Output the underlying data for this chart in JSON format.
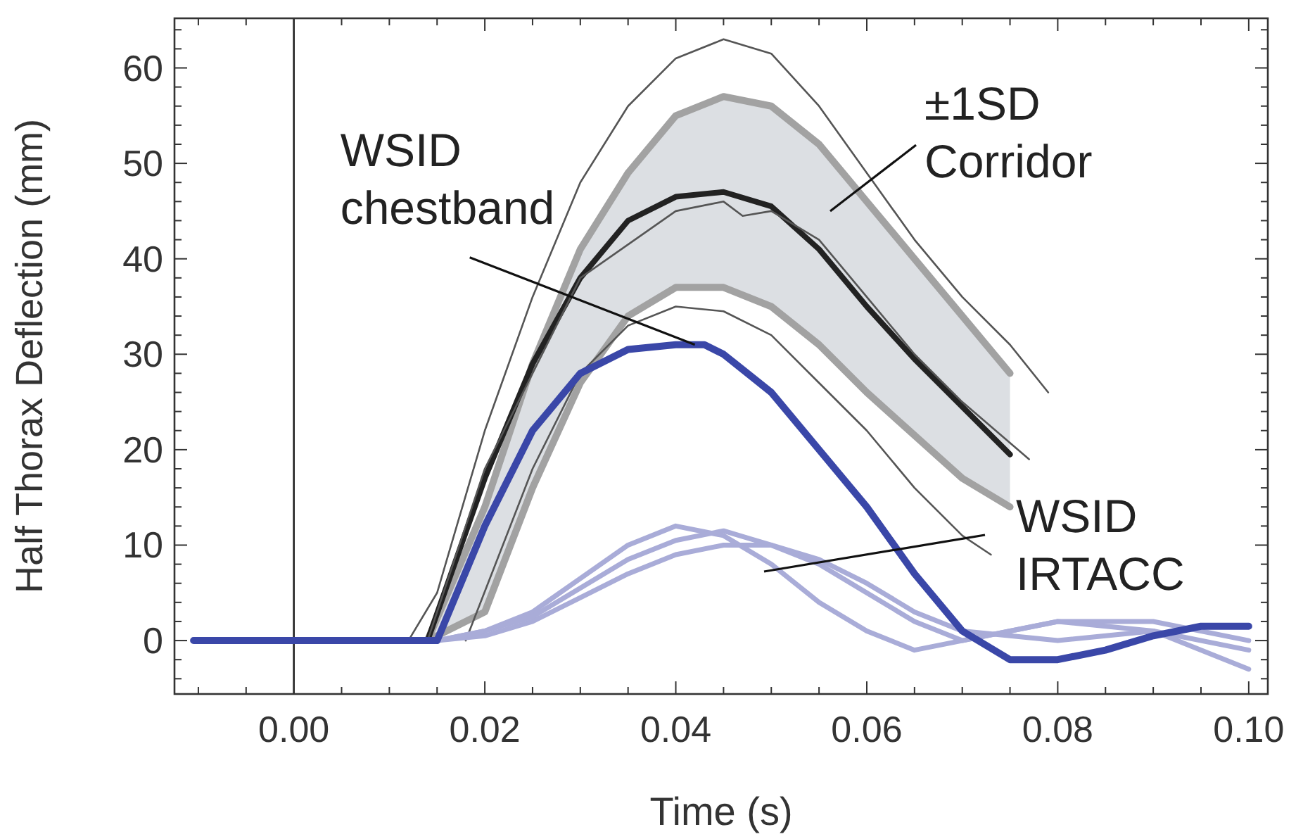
{
  "chart_data": {
    "type": "line",
    "xlabel": "Time (s)",
    "ylabel": "Half Thorax Deflection (mm)",
    "xlim": [
      -0.0125,
      0.102
    ],
    "ylim": [
      -5.6,
      65.2
    ],
    "xticks": [
      {
        "value": -0.01,
        "label": null
      },
      {
        "value": -0.005,
        "label": null
      },
      {
        "value": 0,
        "label": "0.00"
      },
      {
        "value": 0.005,
        "label": null
      },
      {
        "value": 0.01,
        "label": null
      },
      {
        "value": 0.015,
        "label": null
      },
      {
        "value": 0.02,
        "label": "0.02"
      },
      {
        "value": 0.025,
        "label": null
      },
      {
        "value": 0.03,
        "label": null
      },
      {
        "value": 0.035,
        "label": null
      },
      {
        "value": 0.04,
        "label": "0.04"
      },
      {
        "value": 0.045,
        "label": null
      },
      {
        "value": 0.05,
        "label": null
      },
      {
        "value": 0.055,
        "label": null
      },
      {
        "value": 0.06,
        "label": "0.06"
      },
      {
        "value": 0.065,
        "label": null
      },
      {
        "value": 0.07,
        "label": null
      },
      {
        "value": 0.075,
        "label": null
      },
      {
        "value": 0.08,
        "label": "0.08"
      },
      {
        "value": 0.085,
        "label": null
      },
      {
        "value": 0.09,
        "label": null
      },
      {
        "value": 0.095,
        "label": null
      },
      {
        "value": 0.1,
        "label": "0.10"
      }
    ],
    "yticks": [
      {
        "value": -4,
        "label": null
      },
      {
        "value": -2,
        "label": null
      },
      0,
      {
        "value": 2,
        "label": null
      },
      {
        "value": 4,
        "label": null
      },
      {
        "value": 6,
        "label": null
      },
      {
        "value": 8,
        "label": null
      },
      10,
      {
        "value": 12,
        "label": null
      },
      {
        "value": 14,
        "label": null
      },
      {
        "value": 16,
        "label": null
      },
      {
        "value": 18,
        "label": null
      },
      20,
      {
        "value": 22,
        "label": null
      },
      {
        "value": 24,
        "label": null
      },
      {
        "value": 26,
        "label": null
      },
      {
        "value": 28,
        "label": null
      },
      30,
      {
        "value": 32,
        "label": null
      },
      {
        "value": 34,
        "label": null
      },
      {
        "value": 36,
        "label": null
      },
      {
        "value": 38,
        "label": null
      },
      40,
      {
        "value": 42,
        "label": null
      },
      {
        "value": 44,
        "label": null
      },
      {
        "value": 46,
        "label": null
      },
      {
        "value": 48,
        "label": null
      },
      50,
      {
        "value": 52,
        "label": null
      },
      {
        "value": 54,
        "label": null
      },
      {
        "value": 56,
        "label": null
      },
      {
        "value": 58,
        "label": null
      },
      60,
      {
        "value": 62,
        "label": null
      },
      {
        "value": 64,
        "label": null
      }
    ],
    "grid": false,
    "ref_lines": [
      {
        "axis": "x",
        "value": 0,
        "color": "#222222"
      }
    ],
    "series": [
      {
        "color": "#a2a2a2",
        "x": [
          0.014,
          0.02,
          0.025,
          0.03,
          0.035,
          0.04,
          0.045,
          0.05,
          0.055,
          0.06,
          0.065,
          0.07,
          0.075
        ],
        "values": [
          0,
          14,
          29,
          41,
          49,
          55,
          57,
          56,
          52,
          46,
          40,
          34,
          28
        ]
      },
      {
        "color": "#a2a2a2",
        "x": [
          0.014,
          0.02,
          0.025,
          0.03,
          0.035,
          0.04,
          0.045,
          0.05,
          0.055,
          0.06,
          0.065,
          0.07,
          0.075
        ],
        "values": [
          0,
          3,
          16,
          27,
          34,
          37,
          37,
          35,
          31,
          26,
          21.5,
          17,
          14
        ]
      },
      {
        "color": "#222222",
        "x": [
          0.014,
          0.02,
          0.025,
          0.03,
          0.035,
          0.04,
          0.045,
          0.05,
          0.055,
          0.06,
          0.065,
          0.07,
          0.075
        ],
        "values": [
          0,
          17,
          29,
          38,
          44,
          46.5,
          47,
          45.5,
          41,
          35,
          29.5,
          24.5,
          19.5
        ],
        "lower": [
          0,
          3,
          16,
          27,
          34,
          37,
          37,
          35,
          31,
          26,
          21.5,
          17,
          14
        ],
        "upper": [
          0,
          14,
          29,
          41,
          49,
          55,
          57,
          56,
          52,
          46,
          40,
          34,
          28
        ]
      },
      {
        "color": "#555555",
        "x": [
          0.012,
          0.015,
          0.02,
          0.025,
          0.03,
          0.035,
          0.04,
          0.045,
          0.05,
          0.055,
          0.06,
          0.065,
          0.07,
          0.075,
          0.079
        ],
        "values": [
          0,
          5,
          22,
          36,
          48,
          56,
          61,
          63,
          61.5,
          56,
          49,
          42,
          36,
          31,
          26
        ]
      },
      {
        "color": "#555555",
        "x": [
          0.018,
          0.025,
          0.03,
          0.035,
          0.04,
          0.045,
          0.05,
          0.055,
          0.06,
          0.065,
          0.07,
          0.073
        ],
        "values": [
          0,
          18,
          28,
          33,
          35,
          34.5,
          32,
          27,
          22,
          16,
          11,
          9
        ]
      },
      {
        "color": "#555555",
        "x": [
          0.014,
          0.02,
          0.03,
          0.04,
          0.045,
          0.047,
          0.05,
          0.055,
          0.06,
          0.065,
          0.07,
          0.077
        ],
        "values": [
          0,
          18,
          38,
          45,
          46,
          44.5,
          45,
          42,
          36,
          30,
          25,
          19
        ]
      },
      {
        "color": "#a9acd8",
        "x": [
          -0.0105,
          0.015,
          0.02,
          0.025,
          0.03,
          0.035,
          0.04,
          0.045,
          0.05,
          0.055,
          0.06,
          0.065,
          0.07,
          0.08,
          0.09,
          0.1
        ],
        "values": [
          0,
          0,
          1,
          3,
          6.5,
          10,
          12,
          11,
          8,
          4,
          1,
          -1,
          0,
          2,
          1,
          -1
        ]
      },
      {
        "color": "#a9acd8",
        "x": [
          -0.0105,
          0.015,
          0.02,
          0.025,
          0.03,
          0.035,
          0.04,
          0.045,
          0.05,
          0.055,
          0.06,
          0.065,
          0.07,
          0.075,
          0.08,
          0.09,
          0.1
        ],
        "values": [
          0,
          0,
          0.5,
          2,
          4.5,
          7,
          9,
          10,
          10,
          8,
          5,
          2,
          0,
          1,
          2,
          2,
          0
        ]
      },
      {
        "color": "#a9acd8",
        "x": [
          -0.0105,
          0.015,
          0.02,
          0.025,
          0.03,
          0.035,
          0.04,
          0.045,
          0.05,
          0.055,
          0.06,
          0.065,
          0.07,
          0.08,
          0.09,
          0.1
        ],
        "values": [
          0,
          0,
          1,
          2.5,
          5.5,
          8.5,
          10.5,
          11.5,
          10,
          8.5,
          6,
          3,
          1,
          0,
          1,
          -3
        ]
      },
      {
        "color": "#3a47a8",
        "x": [
          -0.0105,
          0.015,
          0.02,
          0.025,
          0.03,
          0.035,
          0.04,
          0.043,
          0.045,
          0.05,
          0.055,
          0.06,
          0.065,
          0.07,
          0.075,
          0.08,
          0.085,
          0.09,
          0.095,
          0.1
        ],
        "values": [
          0,
          0,
          12,
          22,
          28,
          30.5,
          31,
          31,
          30,
          26,
          20,
          14,
          7,
          1,
          -2,
          -2,
          -1,
          0.5,
          1.5,
          1.5
        ]
      }
    ],
    "annotations": [
      {
        "text": "WSID\nchestband",
        "x": 0.042,
        "y": 31
      },
      "±1SD\nCorridor",
      "WSID\nIRTACC"
    ]
  }
}
